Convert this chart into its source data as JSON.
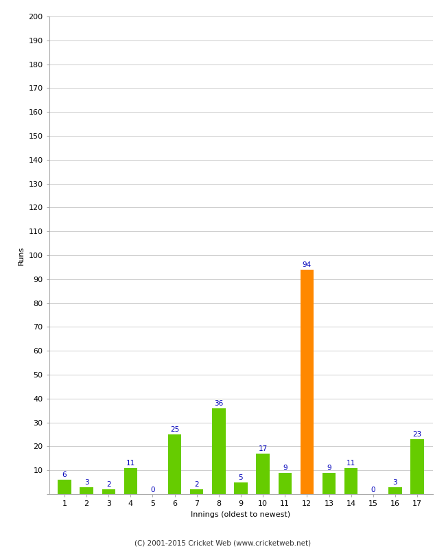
{
  "innings": [
    1,
    2,
    3,
    4,
    5,
    6,
    7,
    8,
    9,
    10,
    11,
    12,
    13,
    14,
    15,
    16,
    17
  ],
  "runs": [
    6,
    3,
    2,
    11,
    0,
    25,
    2,
    36,
    5,
    17,
    9,
    94,
    9,
    11,
    0,
    3,
    23
  ],
  "bar_colors": [
    "#66cc00",
    "#66cc00",
    "#66cc00",
    "#66cc00",
    "#66cc00",
    "#66cc00",
    "#66cc00",
    "#66cc00",
    "#66cc00",
    "#66cc00",
    "#66cc00",
    "#ff8800",
    "#66cc00",
    "#66cc00",
    "#66cc00",
    "#66cc00",
    "#66cc00"
  ],
  "ylabel": "Runs",
  "xlabel": "Innings (oldest to newest)",
  "ylim": [
    0,
    200
  ],
  "yticks": [
    0,
    10,
    20,
    30,
    40,
    50,
    60,
    70,
    80,
    90,
    100,
    110,
    120,
    130,
    140,
    150,
    160,
    170,
    180,
    190,
    200
  ],
  "label_color": "#0000bb",
  "label_fontsize": 7.5,
  "axis_label_fontsize": 8,
  "tick_fontsize": 8,
  "footer": "(C) 2001-2015 Cricket Web (www.cricketweb.net)",
  "footer_fontsize": 7.5,
  "bg_color": "#ffffff",
  "grid_color": "#cccccc",
  "bar_width": 0.6,
  "spine_color": "#aaaaaa"
}
